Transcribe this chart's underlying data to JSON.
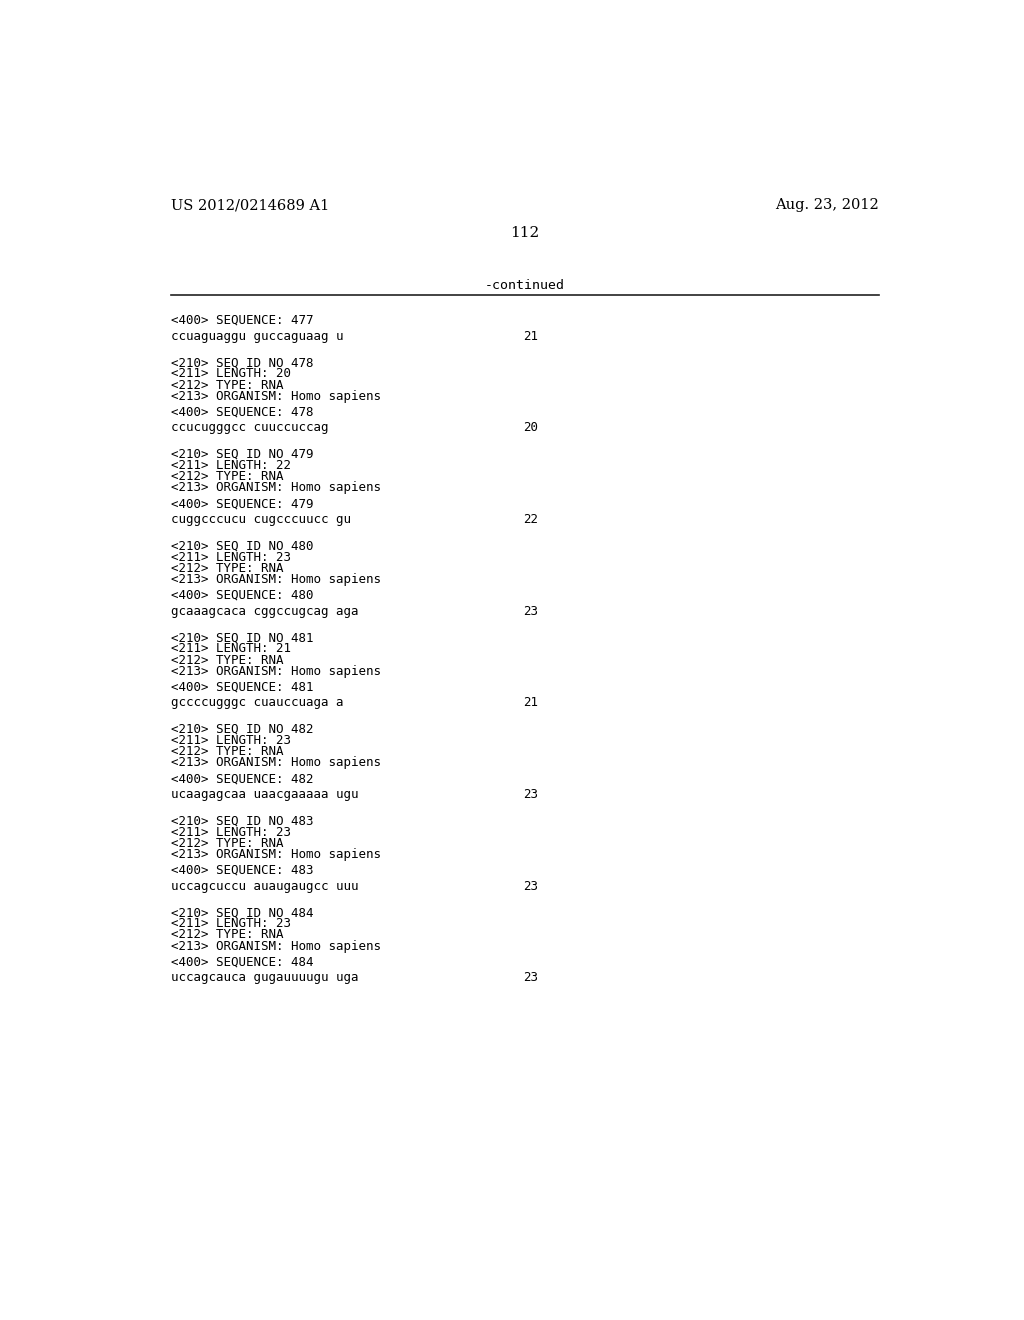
{
  "header_left": "US 2012/0214689 A1",
  "header_right": "Aug. 23, 2012",
  "page_number": "112",
  "continued_label": "-continued",
  "background_color": "#ffffff",
  "text_color": "#000000",
  "entries": [
    {
      "has_meta": false,
      "seq400": "<400> SEQUENCE: 477",
      "sequence": "ccuaguaggu guccaguaag u",
      "seq_num": "21"
    },
    {
      "has_meta": true,
      "seq210": "<210> SEQ ID NO 478",
      "seq211": "<211> LENGTH: 20",
      "seq212": "<212> TYPE: RNA",
      "seq213": "<213> ORGANISM: Homo sapiens",
      "seq400": "<400> SEQUENCE: 478",
      "sequence": "ccucugggcc cuuccuccag",
      "seq_num": "20"
    },
    {
      "has_meta": true,
      "seq210": "<210> SEQ ID NO 479",
      "seq211": "<211> LENGTH: 22",
      "seq212": "<212> TYPE: RNA",
      "seq213": "<213> ORGANISM: Homo sapiens",
      "seq400": "<400> SEQUENCE: 479",
      "sequence": "cuggcccucu cugcccuucc gu",
      "seq_num": "22"
    },
    {
      "has_meta": true,
      "seq210": "<210> SEQ ID NO 480",
      "seq211": "<211> LENGTH: 23",
      "seq212": "<212> TYPE: RNA",
      "seq213": "<213> ORGANISM: Homo sapiens",
      "seq400": "<400> SEQUENCE: 480",
      "sequence": "gcaaagcaca cggccugcag aga",
      "seq_num": "23"
    },
    {
      "has_meta": true,
      "seq210": "<210> SEQ ID NO 481",
      "seq211": "<211> LENGTH: 21",
      "seq212": "<212> TYPE: RNA",
      "seq213": "<213> ORGANISM: Homo sapiens",
      "seq400": "<400> SEQUENCE: 481",
      "sequence": "gccccugggc cuauccuaga a",
      "seq_num": "21"
    },
    {
      "has_meta": true,
      "seq210": "<210> SEQ ID NO 482",
      "seq211": "<211> LENGTH: 23",
      "seq212": "<212> TYPE: RNA",
      "seq213": "<213> ORGANISM: Homo sapiens",
      "seq400": "<400> SEQUENCE: 482",
      "sequence": "ucaagagcaa uaacgaaaaa ugu",
      "seq_num": "23"
    },
    {
      "has_meta": true,
      "seq210": "<210> SEQ ID NO 483",
      "seq211": "<211> LENGTH: 23",
      "seq212": "<212> TYPE: RNA",
      "seq213": "<213> ORGANISM: Homo sapiens",
      "seq400": "<400> SEQUENCE: 483",
      "sequence": "uccagcuccu auaugaugcc uuu",
      "seq_num": "23"
    },
    {
      "has_meta": true,
      "seq210": "<210> SEQ ID NO 484",
      "seq211": "<211> LENGTH: 23",
      "seq212": "<212> TYPE: RNA",
      "seq213": "<213> ORGANISM: Homo sapiens",
      "seq400": "<400> SEQUENCE: 484",
      "sequence": "uccagcauca gugauuuugu uga",
      "seq_num": "23"
    }
  ]
}
